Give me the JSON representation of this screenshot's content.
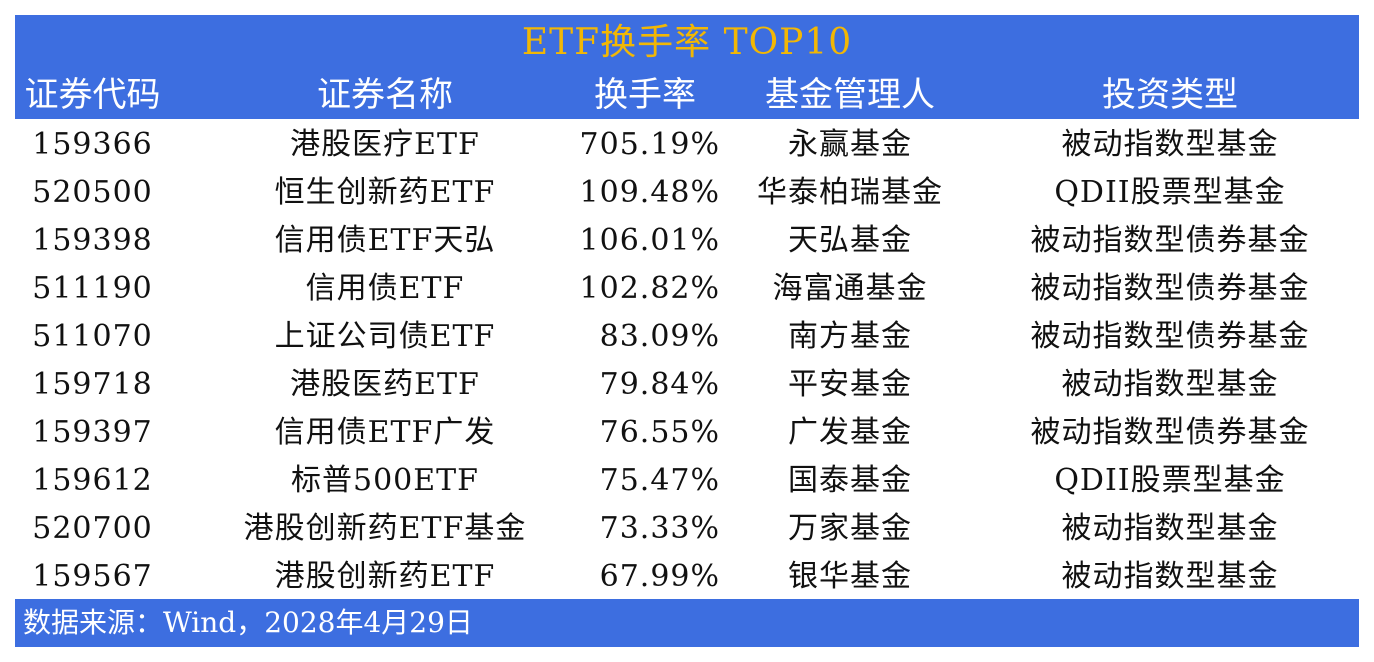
{
  "title": "ETF换手率 TOP10",
  "columns": [
    "证券代码",
    "证券名称",
    "换手率",
    "基金管理人",
    "投资类型"
  ],
  "rows": [
    [
      "159366",
      "港股医疗ETF",
      "705.19%",
      "永赢基金",
      "被动指数型基金"
    ],
    [
      "520500",
      "恒生创新药ETF",
      "109.48%",
      "华泰柏瑞基金",
      "QDII股票型基金"
    ],
    [
      "159398",
      "信用债ETF天弘",
      "106.01%",
      "天弘基金",
      "被动指数型债券基金"
    ],
    [
      "511190",
      "信用债ETF",
      "102.82%",
      "海富通基金",
      "被动指数型债券基金"
    ],
    [
      "511070",
      "上证公司债ETF",
      "83.09%",
      "南方基金",
      "被动指数型债券基金"
    ],
    [
      "159718",
      "港股医药ETF",
      "79.84%",
      "平安基金",
      "被动指数型基金"
    ],
    [
      "159397",
      "信用债ETF广发",
      "76.55%",
      "广发基金",
      "被动指数型债券基金"
    ],
    [
      "159612",
      "标普500ETF",
      "75.47%",
      "国泰基金",
      "QDII股票型基金"
    ],
    [
      "520700",
      "港股创新药ETF基金",
      "73.33%",
      "万家基金",
      "被动指数型基金"
    ],
    [
      "159567",
      "港股创新药ETF",
      "67.99%",
      "银华基金",
      "被动指数型基金"
    ]
  ],
  "source": "数据来源：Wind，2028年4月29日",
  "colors": {
    "header_bg": "#3d6ee0",
    "title_text": "#f2b705",
    "header_text": "#ffffff",
    "body_text": "#111111"
  }
}
